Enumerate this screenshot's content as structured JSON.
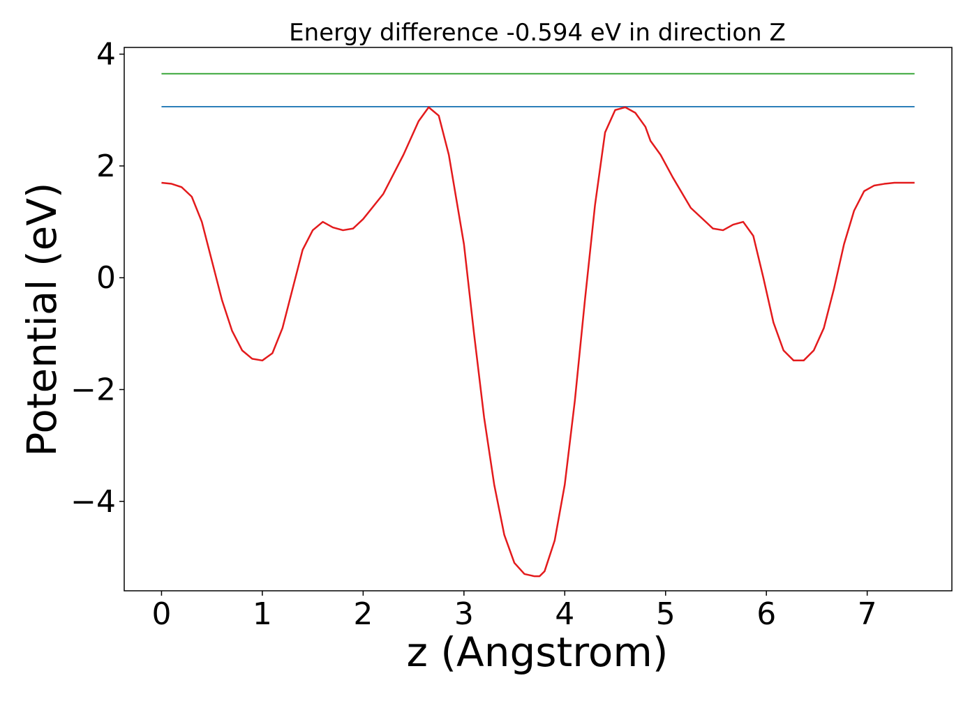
{
  "chart_data": {
    "type": "line",
    "title": "Energy difference -0.594 eV in direction Z",
    "xlabel": "z (Angstrom)",
    "ylabel": "Potential (eV)",
    "xlim": [
      -0.37,
      7.84
    ],
    "ylim": [
      -5.6,
      4.12
    ],
    "x_ticks": [
      0,
      1,
      2,
      3,
      4,
      5,
      6,
      7
    ],
    "x_tick_labels": [
      "0",
      "1",
      "2",
      "3",
      "4",
      "5",
      "6",
      "7"
    ],
    "y_ticks": [
      -4,
      -2,
      0,
      2,
      4
    ],
    "y_tick_labels": [
      "−4",
      "−2",
      "0",
      "2",
      "4"
    ],
    "grid": false,
    "series": [
      {
        "color": "#1f77b4",
        "x": [
          0,
          7.47
        ],
        "y": [
          3.06,
          3.06
        ]
      },
      {
        "color": "#2ca02c",
        "x": [
          0,
          7.47
        ],
        "y": [
          3.65,
          3.65
        ]
      },
      {
        "color": "#e31a1c",
        "x": [
          0,
          0.1,
          0.2,
          0.3,
          0.4,
          0.5,
          0.6,
          0.7,
          0.8,
          0.9,
          1.0,
          1.1,
          1.2,
          1.3,
          1.4,
          1.5,
          1.6,
          1.7,
          1.8,
          1.9,
          2.0,
          2.2,
          2.4,
          2.55,
          2.65,
          2.75,
          2.85,
          3.0,
          3.1,
          3.2,
          3.3,
          3.4,
          3.5,
          3.6,
          3.7,
          3.75,
          3.8,
          3.9,
          4.0,
          4.1,
          4.2,
          4.3,
          4.4,
          4.5,
          4.6,
          4.7,
          4.8,
          4.85,
          4.95,
          5.07,
          5.25,
          5.47,
          5.57,
          5.67,
          5.77,
          5.87,
          5.97,
          6.07,
          6.17,
          6.27,
          6.37,
          6.47,
          6.57,
          6.67,
          6.77,
          6.87,
          6.97,
          7.07,
          7.17,
          7.27,
          7.37,
          7.47
        ],
        "y": [
          1.7,
          1.68,
          1.62,
          1.45,
          1.0,
          0.3,
          -0.4,
          -0.95,
          -1.3,
          -1.45,
          -1.48,
          -1.35,
          -0.9,
          -0.2,
          0.5,
          0.85,
          1.0,
          0.9,
          0.85,
          0.88,
          1.05,
          1.5,
          2.2,
          2.8,
          3.05,
          2.9,
          2.2,
          0.6,
          -1.0,
          -2.5,
          -3.7,
          -4.6,
          -5.1,
          -5.3,
          -5.34,
          -5.34,
          -5.25,
          -4.7,
          -3.7,
          -2.2,
          -0.4,
          1.3,
          2.6,
          3.0,
          3.05,
          2.95,
          2.7,
          2.45,
          2.2,
          1.8,
          1.25,
          0.88,
          0.85,
          0.95,
          1.0,
          0.75,
          0.0,
          -0.8,
          -1.3,
          -1.48,
          -1.48,
          -1.3,
          -0.9,
          -0.2,
          0.6,
          1.2,
          1.55,
          1.65,
          1.68,
          1.7,
          1.7,
          1.7
        ]
      }
    ]
  }
}
